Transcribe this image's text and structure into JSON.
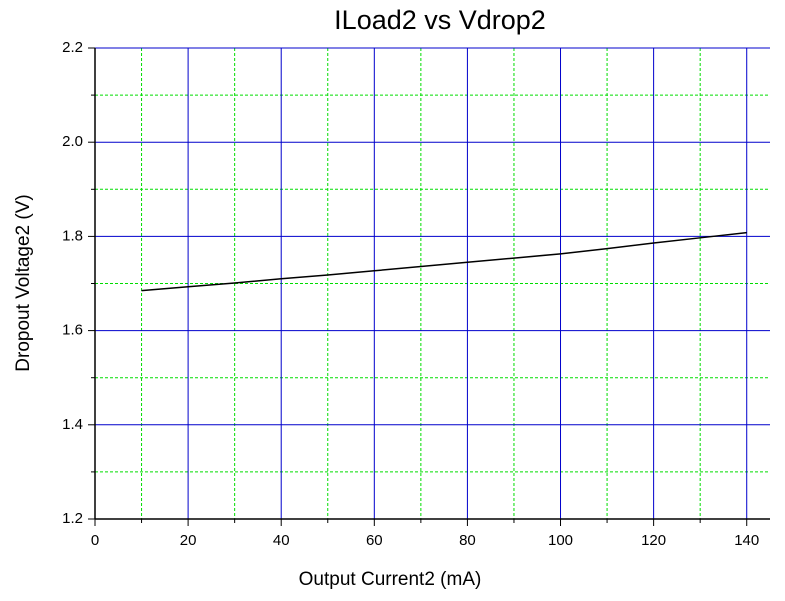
{
  "chart_data": {
    "type": "line",
    "title": "ILoad2 vs Vdrop2",
    "x_label": "Output Current2 (mA)",
    "y_label": "Dropout Voltage2 (V)",
    "x": [
      10,
      20,
      30,
      40,
      50,
      60,
      70,
      80,
      90,
      100,
      110,
      120,
      130,
      140
    ],
    "series": [
      {
        "name": "Vdrop2",
        "color": "#000000",
        "values": [
          1.685,
          1.693,
          1.701,
          1.71,
          1.718,
          1.727,
          1.736,
          1.745,
          1.754,
          1.763,
          1.774,
          1.786,
          1.797,
          1.808
        ]
      }
    ],
    "xlim": [
      0,
      145
    ],
    "xticks": [
      0,
      20,
      40,
      60,
      80,
      100,
      120,
      140
    ],
    "ylim": [
      1.2,
      2.2
    ],
    "yticks": [
      {
        "value": 1.2,
        "label": "1.2"
      },
      {
        "value": 1.4,
        "label": "1.4"
      },
      {
        "value": 1.6,
        "label": "1.6"
      },
      {
        "value": 1.8,
        "label": "1.8"
      },
      {
        "value": 2.0,
        "label": "2.0"
      },
      {
        "value": 2.2,
        "label": "2.2"
      }
    ],
    "xminorticks": [
      10,
      30,
      50,
      70,
      90,
      110,
      130
    ],
    "yminorticks": [
      1.3,
      1.5,
      1.7,
      1.9,
      2.1
    ],
    "grid": true,
    "major_grid_color": "#0000cc",
    "minor_grid_color": "#00dd00"
  }
}
